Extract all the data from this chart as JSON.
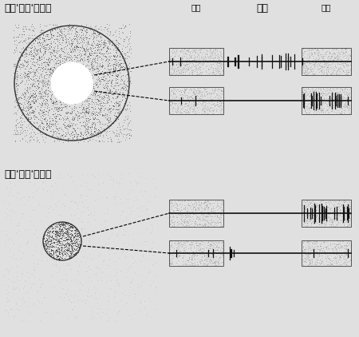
{
  "label_top": "中心'给光'反应区",
  "label_bottom": "中心'撤光'反应区",
  "label_give": "给光",
  "label_withdraw": "撤光",
  "bg_color": "#e0e0e0",
  "dot_dark": "#444444",
  "dot_mid": "#666666",
  "dot_light": "#999999",
  "trace_color": "#111111",
  "panel_edge": "#555555"
}
